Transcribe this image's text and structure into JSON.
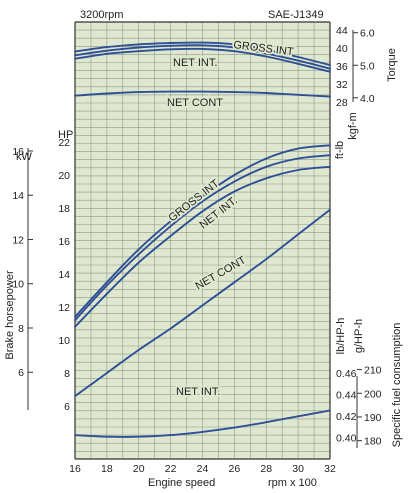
{
  "chart_data": {
    "type": "line",
    "header_left": "3200rpm",
    "header_right": "SAE-J1349",
    "xlabel": "Engine speed",
    "xunit": "rpm x 100",
    "xlim": [
      16,
      32
    ],
    "xticks": [
      16,
      18,
      20,
      22,
      24,
      26,
      28,
      30,
      32
    ],
    "colors": {
      "panel": "#dfe8cf",
      "grid": "#8e9a8a",
      "curve": "#2f4f96",
      "axis": "#333333"
    },
    "torque_panel": {
      "ylabel": "Torque",
      "unit_ftlb": "ft-lb",
      "unit_kgfm": "kgf-m",
      "ylim_ftlb": [
        28,
        44
      ],
      "ticks_ftlb": [
        28,
        32,
        36,
        40,
        44
      ],
      "ticks_kgfm": [
        "4.0",
        "5.0",
        "6.0"
      ],
      "kgfm_values": [
        4.0,
        5.0,
        6.0
      ],
      "series": [
        {
          "name": "GROSS INT",
          "x": [
            16,
            18,
            20,
            22,
            24,
            26,
            28,
            30,
            32
          ],
          "y": [
            39.2,
            40.2,
            40.8,
            41.1,
            41.2,
            40.8,
            39.6,
            38.0,
            36.2
          ]
        },
        {
          "name": "",
          "x": [
            16,
            18,
            20,
            22,
            24,
            26,
            28,
            30,
            32
          ],
          "y": [
            38.4,
            39.4,
            40.1,
            40.5,
            40.6,
            40.1,
            38.8,
            37.2,
            35.4
          ]
        },
        {
          "name": "NET INT.",
          "x": [
            16,
            18,
            20,
            22,
            24,
            26,
            28,
            30,
            32
          ],
          "y": [
            37.6,
            38.7,
            39.3,
            39.7,
            39.8,
            39.3,
            38.1,
            36.5,
            34.7
          ]
        },
        {
          "name": "NET CONT",
          "x": [
            16,
            18,
            20,
            22,
            24,
            26,
            28,
            30,
            32
          ],
          "y": [
            29.4,
            29.9,
            30.2,
            30.3,
            30.3,
            30.2,
            30.0,
            29.6,
            29.2
          ]
        }
      ]
    },
    "power_panel": {
      "ylabel": "Brake horsepower",
      "unit_hp": "HP",
      "unit_kw": "kW",
      "ylim_hp": [
        6,
        22
      ],
      "ticks_hp": [
        6,
        8,
        10,
        12,
        14,
        16,
        18,
        20,
        22
      ],
      "ticks_kw": [
        6,
        8,
        10,
        12,
        14,
        16
      ],
      "series": [
        {
          "name": "GROSS INT",
          "x": [
            16,
            18,
            20,
            22,
            24,
            26,
            28,
            30,
            32
          ],
          "y": [
            11.4,
            13.5,
            15.5,
            17.2,
            18.7,
            20.0,
            21.0,
            21.6,
            21.8
          ]
        },
        {
          "name": "",
          "x": [
            16,
            18,
            20,
            22,
            24,
            26,
            28,
            30,
            32
          ],
          "y": [
            11.2,
            13.3,
            15.2,
            16.9,
            18.4,
            19.6,
            20.5,
            21.0,
            21.2
          ]
        },
        {
          "name": "NET INT.",
          "x": [
            16,
            18,
            20,
            22,
            24,
            26,
            28,
            30,
            32
          ],
          "y": [
            10.8,
            12.8,
            14.7,
            16.3,
            17.8,
            19.0,
            19.8,
            20.3,
            20.5
          ]
        },
        {
          "name": "NET CONT",
          "x": [
            16,
            18,
            20,
            22,
            24,
            26,
            28,
            30,
            32
          ],
          "y": [
            6.6,
            8.0,
            9.4,
            10.7,
            12.1,
            13.5,
            14.9,
            16.4,
            17.9
          ]
        }
      ]
    },
    "fuel_panel": {
      "ylabel": "Specific fuel consumption",
      "unit_lb": "lb/HP-h",
      "unit_g": "g/HP-h",
      "ylim_lb": [
        0.39,
        0.47
      ],
      "ticks_lb": [
        "0.40",
        "0.42",
        "0.44",
        "0.46"
      ],
      "lb_values": [
        0.4,
        0.42,
        0.44,
        0.46
      ],
      "ticks_g": [
        180,
        190,
        200,
        210
      ],
      "series": [
        {
          "name": "NET INT.",
          "x": [
            16,
            18,
            20,
            22,
            24,
            26,
            28,
            30,
            32
          ],
          "y": [
            0.402,
            0.4005,
            0.4005,
            0.402,
            0.405,
            0.409,
            0.414,
            0.4195,
            0.425
          ]
        }
      ]
    }
  }
}
